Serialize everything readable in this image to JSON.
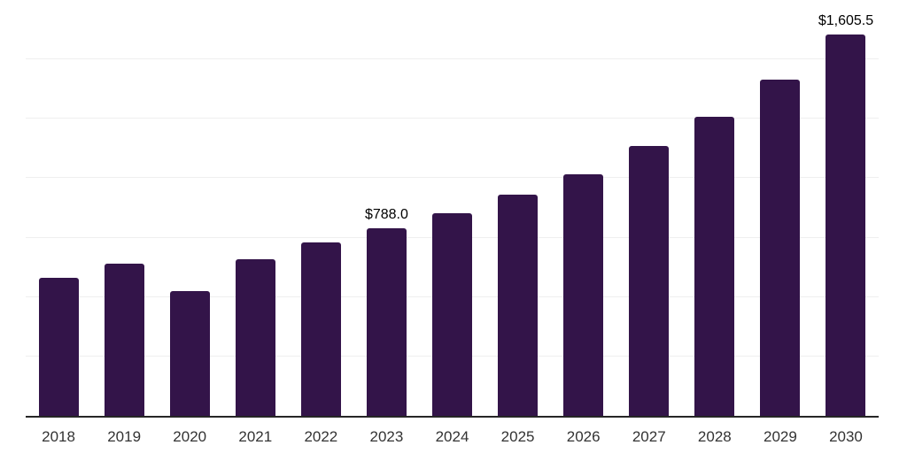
{
  "chart_data": {
    "type": "bar",
    "title": "",
    "xlabel": "",
    "ylabel": "",
    "categories": [
      "2018",
      "2019",
      "2020",
      "2021",
      "2022",
      "2023",
      "2024",
      "2025",
      "2026",
      "2027",
      "2028",
      "2029",
      "2030"
    ],
    "values": [
      580,
      642,
      525,
      659,
      730,
      788.0,
      853,
      932,
      1016,
      1134,
      1257,
      1416,
      1605.5
    ],
    "data_labels": [
      "",
      "",
      "",
      "",
      "",
      "$788.0",
      "",
      "",
      "",
      "",
      "",
      "",
      "$1,605.5"
    ],
    "ylim": [
      0,
      1750
    ],
    "gridline_values": [
      250,
      500,
      750,
      1000,
      1250,
      1500,
      1750
    ],
    "grid": "horizontal-light",
    "legend_position": "none",
    "colors": {
      "bar": "#331449",
      "axis_line": "#262626",
      "gridline": "#efefef",
      "tick_label": "#333333",
      "data_label": "#000000",
      "background": "#ffffff"
    }
  }
}
